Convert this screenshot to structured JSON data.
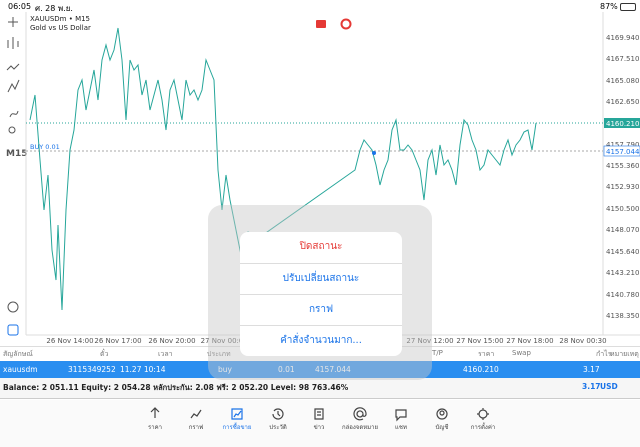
{
  "status_bar": {
    "time": "06:05",
    "date": "ศ. 28 พ.ย.",
    "battery": "87%"
  },
  "chart": {
    "symbol": "XAUUSDm • M15",
    "description": "Gold vs US Dollar",
    "timeframe": "M15",
    "order_line": "BUY 0.01",
    "price_labels": [
      "4169.940",
      "4167.510",
      "4165.080",
      "4162.650",
      "4157.790",
      "4155.360",
      "4152.930",
      "4150.500",
      "4148.070",
      "4145.640",
      "4143.210",
      "4140.780",
      "4138.350"
    ],
    "bid_label": "4160.210",
    "order_label": "4157.044",
    "time_labels": [
      "26 Nov 14:00",
      "26 Nov 17:00",
      "26 Nov 20:00",
      "27 Nov 00:0",
      "27 Nov 12:00",
      "27 Nov 15:00",
      "27 Nov 18:00",
      "28 Nov 00:30"
    ]
  },
  "context_menu": {
    "items": [
      "ปิดสถานะ",
      "ปรับเปลี่ยนสถานะ",
      "กราฟ",
      "คำสั่งจำนวนมาก..."
    ]
  },
  "positions": {
    "headers": [
      "สัญลักษณ์",
      "ตั๋ว",
      "เวลา",
      "ประเภท",
      "ราคา",
      "S/L",
      "T/P",
      "ราคา",
      "Swap",
      "กำไร",
      "หมายเหตุ"
    ],
    "row": [
      "xauusdm",
      "3115349252",
      "11.27 10:14",
      "buy",
      "0.01",
      "4157.044",
      "4160.210",
      "3.17"
    ]
  },
  "balance": {
    "summary": "Balance: 2 051.11 Equity: 2 054.28 หลักประกัน: 2.08 ฟรี: 2 052.20 Level: 98 763.46%",
    "total": "3.17",
    "currency": "USD"
  },
  "tab_bar": {
    "tabs": [
      "ราคา",
      "กราฟ",
      "การซื้อขาย",
      "ประวัติ",
      "ข่าว",
      "กล่องจดหมาย",
      "แชท",
      "บัญชี",
      "การตั้งค่า"
    ]
  }
}
